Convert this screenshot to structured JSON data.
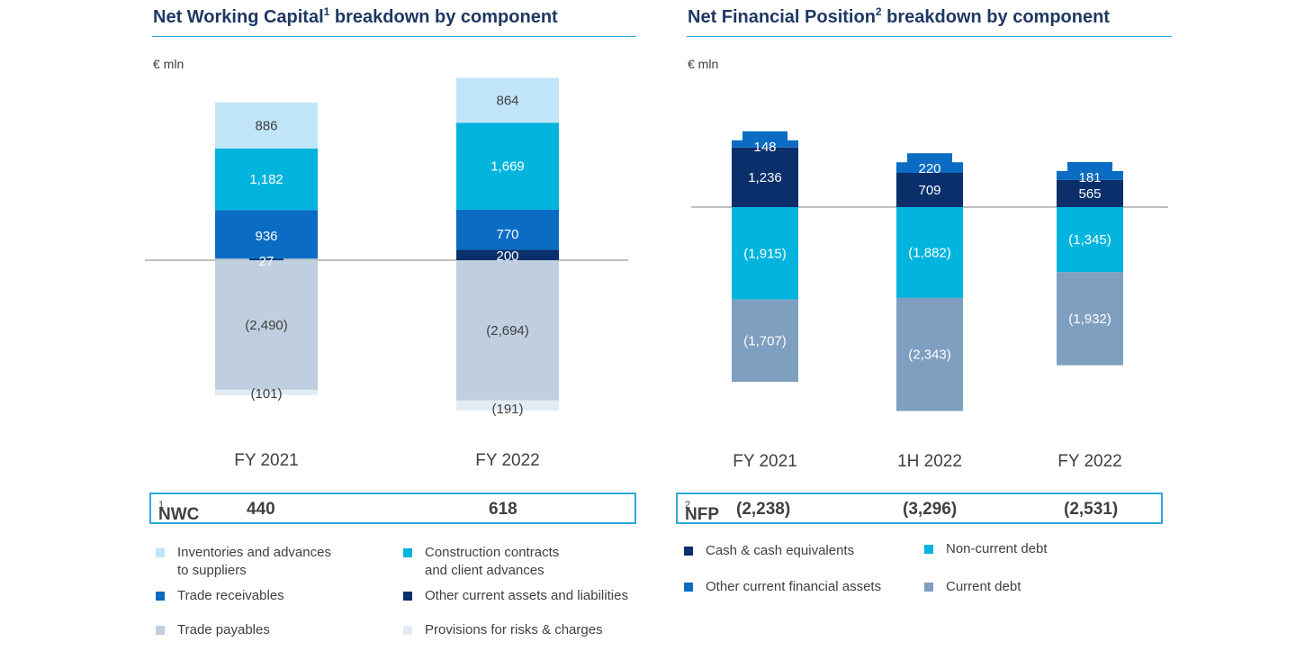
{
  "nwc": {
    "title": "Net Working Capital",
    "title_sup": "1",
    "title_suffix": " breakdown by component",
    "unit": "€ mln",
    "summary": {
      "label": "NWC",
      "label_sup": "1",
      "values": [
        "440",
        "618"
      ]
    },
    "legend": [
      {
        "line1": "Inventories and advances",
        "line2": "to suppliers",
        "color": "#c0e4f8"
      },
      {
        "line1": "Construction contracts",
        "line2": "and client advances",
        "color": "#00b4dd"
      },
      {
        "line1": "Trade receivables",
        "line2": "",
        "color": "#0a6cc2"
      },
      {
        "line1": "Other current assets and liabilities",
        "line2": "",
        "color": "#0a2f6b"
      },
      {
        "line1": "Trade payables",
        "line2": "",
        "color": "#bfcfdf"
      },
      {
        "line1": "Provisions for risks & charges",
        "line2": "",
        "color": "#e2ebf3"
      }
    ]
  },
  "nfp": {
    "title": "Net Financial Position",
    "title_sup": "2",
    "title_suffix": " breakdown by component",
    "unit": "€ mln",
    "summary": {
      "label": "NFP",
      "label_sup": "2",
      "values": [
        "(2,238)",
        "(3,296)",
        "(2,531)"
      ]
    },
    "legend": [
      {
        "line1": "Cash & cash equivalents",
        "color": "#0a2f6b"
      },
      {
        "line1": "Non-current debt",
        "color": "#00b4dd"
      },
      {
        "line1": "Other current financial assets",
        "color": "#0a6cc2"
      },
      {
        "line1": "Current debt",
        "color": "#7f9fc0"
      }
    ]
  },
  "chart_data": [
    {
      "type": "bar",
      "stacked": true,
      "title": "Net Working Capital breakdown by component",
      "ylabel": "€ mln",
      "categories": [
        "FY 2021",
        "FY 2022"
      ],
      "series": [
        {
          "name": "Inventories and advances to suppliers",
          "values": [
            886,
            864
          ],
          "labels": [
            "886",
            "864"
          ],
          "color": "#c0e4f8",
          "text_color": "#404040"
        },
        {
          "name": "Construction contracts and client advances",
          "values": [
            1182,
            1669
          ],
          "labels": [
            "1,182",
            "1,669"
          ],
          "color": "#00b4dd",
          "text_color": "#ffffff"
        },
        {
          "name": "Trade receivables",
          "values": [
            936,
            770
          ],
          "labels": [
            "936",
            "770"
          ],
          "color": "#0a6cc2",
          "text_color": "#ffffff"
        },
        {
          "name": "Other current assets and liabilities",
          "values": [
            27,
            200
          ],
          "labels": [
            "27",
            "200"
          ],
          "color": "#0a2f6b",
          "text_color": "#ffffff"
        },
        {
          "name": "Trade payables",
          "values": [
            -2490,
            -2694
          ],
          "labels": [
            "(2,490)",
            "(2,694)"
          ],
          "color": "#bfcfdf",
          "text_color": "#404040"
        },
        {
          "name": "Provisions for risks & charges",
          "values": [
            -101,
            -191
          ],
          "labels": [
            "(101)",
            "(191)"
          ],
          "color": "#e2ebf3",
          "text_color": "#404040"
        }
      ],
      "totals": [
        440,
        618
      ]
    },
    {
      "type": "bar",
      "stacked": true,
      "title": "Net Financial Position breakdown by component",
      "ylabel": "€ mln",
      "categories": [
        "FY 2021",
        "1H 2022",
        "FY 2022"
      ],
      "series": [
        {
          "name": "Cash & cash equivalents",
          "values": [
            1236,
            709,
            565
          ],
          "labels": [
            "1,236",
            "709",
            "565"
          ],
          "color": "#0a2f6b",
          "text_color": "#ffffff"
        },
        {
          "name": "Other current financial assets",
          "values": [
            148,
            220,
            181
          ],
          "labels": [
            "148",
            "220",
            "181"
          ],
          "color": "#0a6cc2",
          "text_color": "#ffffff"
        },
        {
          "name": "Non-current debt",
          "values": [
            -1915,
            -1882,
            -1345
          ],
          "labels": [
            "(1,915)",
            "(1,882)",
            "(1,345)"
          ],
          "color": "#00b4dd",
          "text_color": "#ffffff"
        },
        {
          "name": "Current debt",
          "values": [
            -1707,
            -2343,
            -1932
          ],
          "labels": [
            "(1,707)",
            "(2,343)",
            "(1,932)"
          ],
          "color": "#7f9fc0",
          "text_color": "#ffffff"
        }
      ],
      "totals": [
        -2238,
        -3296,
        -2531
      ]
    }
  ]
}
